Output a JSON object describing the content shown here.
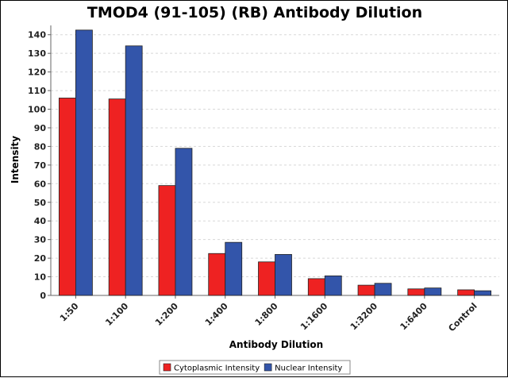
{
  "chart_data": {
    "type": "bar",
    "title": "TMOD4 (91-105) (RB) Antibody Dilution",
    "xlabel": "Antibody Dilution",
    "ylabel": "Intensity",
    "ylim": [
      0,
      145
    ],
    "yticks": [
      0,
      10,
      20,
      30,
      40,
      50,
      60,
      70,
      80,
      90,
      100,
      110,
      120,
      130,
      140
    ],
    "grid": true,
    "legend_position": "bottom-center",
    "categories": [
      "1:50",
      "1:100",
      "1:200",
      "1:400",
      "1:800",
      "1:1600",
      "1:3200",
      "1:6400",
      "Control"
    ],
    "series": [
      {
        "name": "Cytoplasmic Intensity",
        "color": "#ee2222",
        "values": [
          106,
          105.5,
          59,
          22.5,
          18,
          9,
          5.5,
          3.5,
          3
        ]
      },
      {
        "name": "Nuclear Intensity",
        "color": "#3355aa",
        "values": [
          142.5,
          134,
          79,
          28.5,
          22,
          10.5,
          6.5,
          4,
          2.5
        ]
      }
    ]
  }
}
